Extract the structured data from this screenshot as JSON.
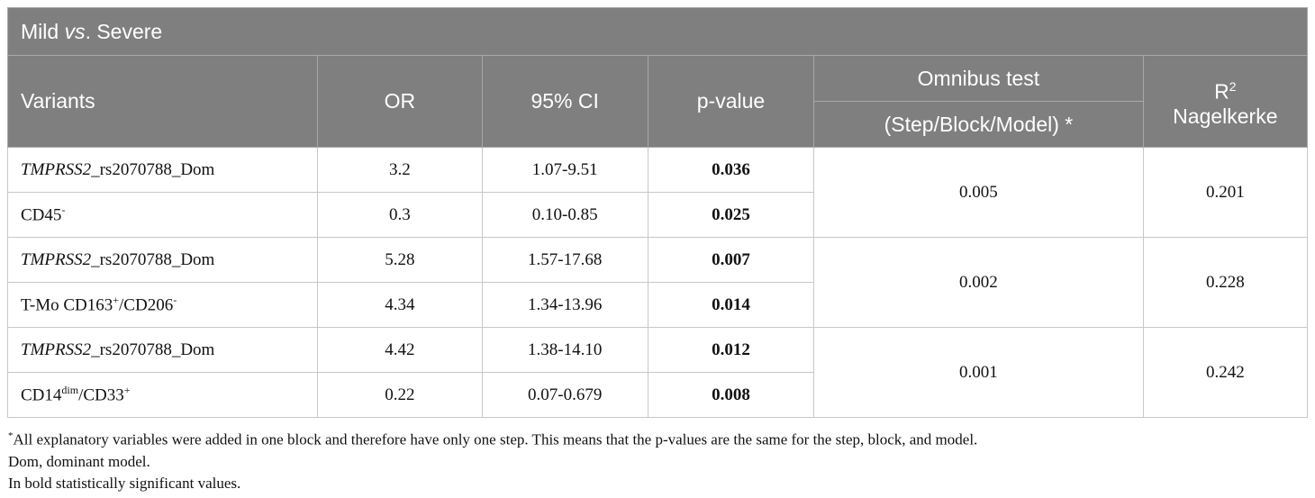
{
  "caption": {
    "pre": "Mild ",
    "em": "vs",
    "post": ". Severe"
  },
  "headers": {
    "variants": "Variants",
    "or": "OR",
    "ci": "95% CI",
    "pvalue": "p-value",
    "omnibus": "Omnibus test",
    "omnibus_sub": "(Step/Block/Model) *",
    "r2_base": "R",
    "r2_sup": "2",
    "r2_label": "Nagelkerke"
  },
  "rows": [
    {
      "variant_em": "TMPRSS2",
      "variant_rest": "_rs2070788_Dom",
      "or": "3.2",
      "ci": "1.07-9.51",
      "p": "0.036"
    },
    {
      "variant_text": "CD45",
      "variant_sup": "-",
      "or": "0.3",
      "ci": "0.10-0.85",
      "p": "0.025"
    },
    {
      "variant_em": "TMPRSS2",
      "variant_rest": "_rs2070788_Dom",
      "or": "5.28",
      "ci": "1.57-17.68",
      "p": "0.007"
    },
    {
      "parts": [
        "T-Mo CD163",
        "+",
        "/CD206",
        "-"
      ],
      "or": "4.34",
      "ci": "1.34-13.96",
      "p": "0.014"
    },
    {
      "variant_em": "TMPRSS2",
      "variant_rest": "_rs2070788_Dom",
      "or": "4.42",
      "ci": "1.38-14.10",
      "p": "0.012"
    },
    {
      "parts": [
        "CD14",
        "dim",
        "/CD33",
        "+"
      ],
      "or": "0.22",
      "ci": "0.07-0.679",
      "p": "0.008"
    }
  ],
  "groups": [
    {
      "omnibus": "0.005",
      "r2": "0.201"
    },
    {
      "omnibus": "0.002",
      "r2": "0.228"
    },
    {
      "omnibus": "0.001",
      "r2": "0.242"
    }
  ],
  "notes": {
    "n1_mark": "*",
    "n1_text": "All explanatory variables were added in one block and therefore have only one step. This means that the p-values are the same for the step, block, and model.",
    "n2": "Dom, dominant model.",
    "n3": "In bold statistically significant values."
  }
}
